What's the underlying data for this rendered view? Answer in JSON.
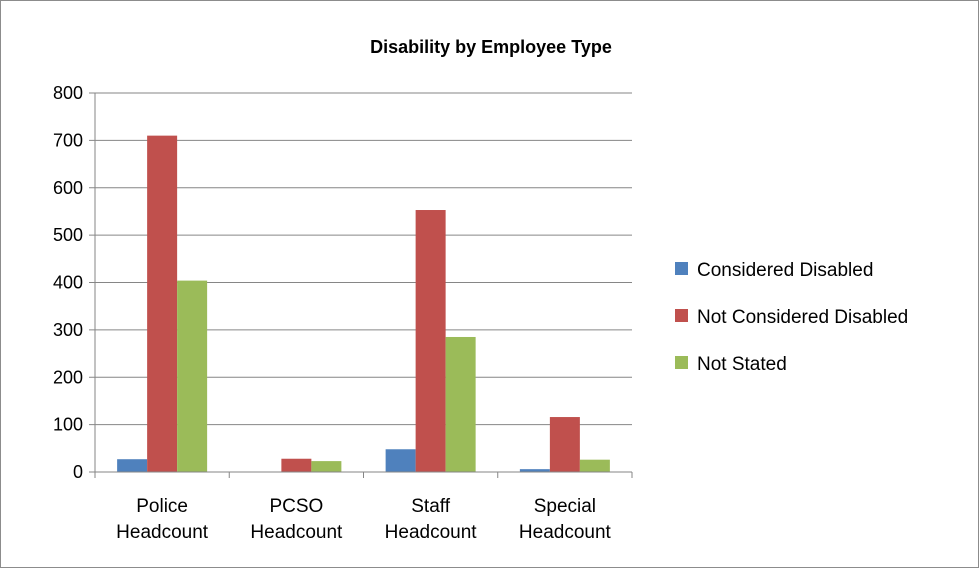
{
  "chart_data": {
    "type": "bar",
    "title": "Disability by Employee Type",
    "xlabel": "",
    "ylabel": "",
    "ylim": [
      0,
      800
    ],
    "yticks": [
      0,
      100,
      200,
      300,
      400,
      500,
      600,
      700,
      800
    ],
    "categories": [
      [
        "Police",
        "Headcount"
      ],
      [
        "PCSO",
        "Headcount"
      ],
      [
        "Staff",
        "Headcount"
      ],
      [
        "Special",
        "Headcount"
      ]
    ],
    "series": [
      {
        "name": "Considered Disabled",
        "color": "#4f81bd",
        "values": [
          27,
          0,
          48,
          6
        ]
      },
      {
        "name": "Not Considered Disabled",
        "color": "#c0504d",
        "values": [
          710,
          28,
          553,
          116
        ]
      },
      {
        "name": "Not Stated",
        "color": "#9bbb59",
        "values": [
          404,
          23,
          285,
          26
        ]
      }
    ],
    "grid": true,
    "legend_position": "right"
  }
}
